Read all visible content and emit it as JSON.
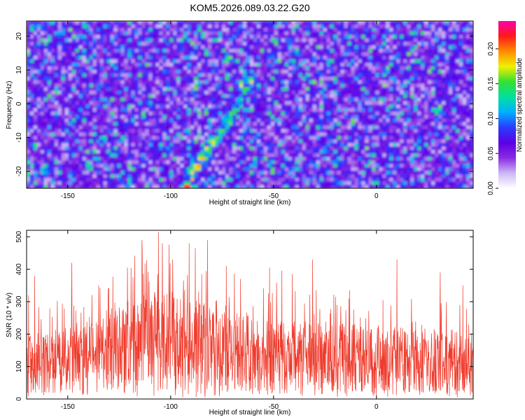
{
  "title": "KOM5.2026.089.03.22.G20",
  "colors": {
    "line": "#ef3b2c",
    "frame": "#000000",
    "colormap": [
      "#ffffff",
      "#cdb7f5",
      "#8a2be2",
      "#5b00e6",
      "#2a3cff",
      "#00b0ff",
      "#00e0a0",
      "#33e033",
      "#f0f000",
      "#ff8c00",
      "#ff1a1a",
      "#ff00aa"
    ]
  },
  "chart_data": [
    {
      "type": "heatmap",
      "xlabel": "Height of straight line (km)",
      "ylabel": "Frequency (Hz)",
      "xlim": [
        -170,
        47
      ],
      "ylim": [
        -25,
        24.5
      ],
      "xticks": [
        -150,
        -100,
        -50,
        0
      ],
      "yticks": [
        20,
        10,
        0,
        -10,
        -20
      ],
      "colorbar": {
        "label": "Normalized spectral amplitude",
        "range": [
          0,
          0.24
        ],
        "ticks": [
          0.0,
          0.05,
          0.1,
          0.15,
          0.2
        ]
      },
      "features": {
        "diagonal_ridge_points": [
          [
            -93,
            -24
          ],
          [
            -90,
            -21
          ],
          [
            -86,
            -17
          ],
          [
            -82,
            -14
          ],
          [
            -78,
            -11
          ],
          [
            -74,
            -7
          ],
          [
            -70,
            -3
          ],
          [
            -66,
            2
          ],
          [
            -62,
            7
          ]
        ],
        "hotspots": [
          [
            -92,
            -24.5,
            0.24
          ],
          [
            -85,
            -16,
            0.2
          ],
          [
            -80,
            -11,
            0.18
          ],
          [
            -61,
            7,
            0.16
          ],
          [
            -110,
            0,
            0.12
          ],
          [
            -120,
            15,
            0.12
          ],
          [
            -38,
            15,
            0.11
          ],
          [
            30,
            -2,
            0.14
          ],
          [
            -160,
            -20,
            0.11
          ],
          [
            -135,
            22,
            0.1
          ],
          [
            5,
            10,
            0.12
          ],
          [
            -170,
            -5,
            0.1
          ]
        ]
      }
    },
    {
      "type": "line",
      "xlabel": "Height of straight line (km)",
      "ylabel": "SNR (10 * v/v)",
      "xlim": [
        -170,
        47
      ],
      "ylim": [
        0,
        520
      ],
      "xticks": [
        -150,
        -100,
        -50,
        0
      ],
      "yticks": [
        0,
        100,
        200,
        300,
        400,
        500
      ],
      "series": [
        {
          "baseline": [
            [
              -170,
              115
            ],
            [
              -140,
              130
            ],
            [
              -120,
              175
            ],
            [
              -105,
              195
            ],
            [
              -95,
              185
            ],
            [
              -80,
              165
            ],
            [
              -60,
              150
            ],
            [
              -40,
              140
            ],
            [
              -20,
              135
            ],
            [
              0,
              130
            ],
            [
              20,
              125
            ],
            [
              47,
              120
            ]
          ],
          "peaks": [
            [
              -169,
              320
            ],
            [
              -166,
              380
            ],
            [
              -148,
              420
            ],
            [
              -135,
              350
            ],
            [
              -121,
              405
            ],
            [
              -114,
              490
            ],
            [
              -106,
              515
            ],
            [
              -104,
              480
            ],
            [
              -99,
              430
            ],
            [
              -91,
              480
            ],
            [
              -88,
              465
            ],
            [
              -82,
              490
            ],
            [
              -73,
              410
            ],
            [
              -66,
              370
            ],
            [
              -52,
              405
            ],
            [
              -46,
              395
            ],
            [
              -41,
              385
            ],
            [
              -31,
              430
            ],
            [
              -13,
              335
            ],
            [
              10,
              430
            ],
            [
              31,
              390
            ],
            [
              42,
              350
            ]
          ]
        }
      ]
    }
  ]
}
